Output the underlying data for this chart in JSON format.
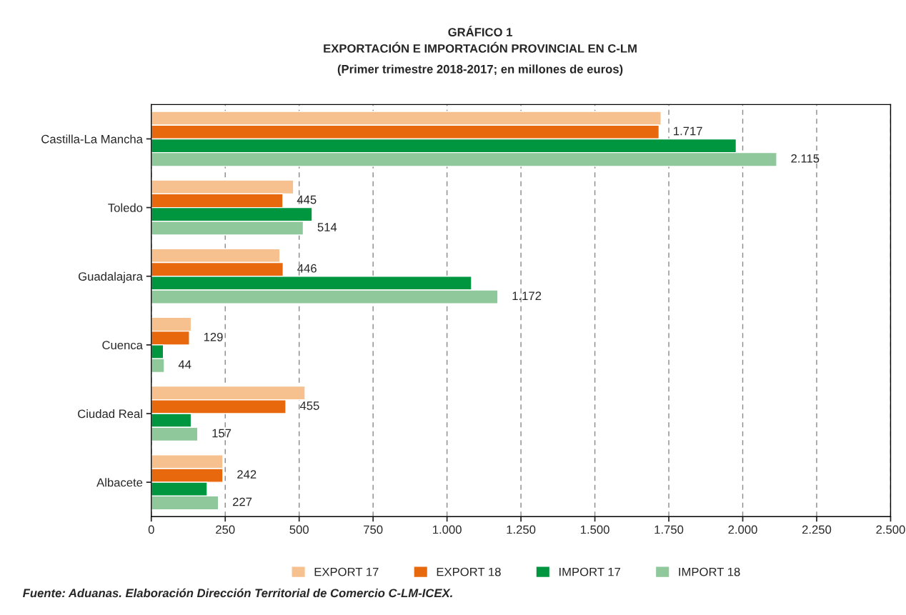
{
  "chart_data": {
    "type": "bar",
    "orientation": "horizontal",
    "title": "GRÁFICO 1\nEXPORTACIÓN E IMPORTACIÓN PROVINCIAL EN C-LM",
    "subtitle": "(Primer trimestre 2018-2017; en millones de euros)",
    "categories": [
      "Castilla-La Mancha",
      "Toledo",
      "Guadalajara",
      "Cuenca",
      "Ciudad Real",
      "Albacete"
    ],
    "series": [
      {
        "name": "EXPORT 17",
        "color": "#f7c08f",
        "values": [
          1724,
          481,
          435,
          135,
          520,
          242
        ]
      },
      {
        "name": "EXPORT 18",
        "color": "#e8690d",
        "values": [
          1717,
          445,
          446,
          129,
          455,
          242
        ],
        "value_labels": [
          "1.717",
          "445",
          "446",
          "129",
          "455",
          "242"
        ]
      },
      {
        "name": "IMPORT 17",
        "color": "#00963f",
        "values": [
          1978,
          544,
          1083,
          41,
          135,
          189
        ]
      },
      {
        "name": "IMPORT 18",
        "color": "#8fc89a",
        "values": [
          2115,
          514,
          1172,
          44,
          157,
          227
        ],
        "value_labels": [
          "2.115",
          "514",
          "1.172",
          "44",
          "157",
          "227"
        ]
      }
    ],
    "xlim": [
      0,
      2500
    ],
    "xticks": [
      0,
      250,
      500,
      750,
      {
        "value": 1000,
        "label": "1.000"
      },
      {
        "value": 1250,
        "label": "1.250"
      },
      {
        "value": 1500,
        "label": "1.500"
      },
      {
        "value": 1750,
        "label": "1.750"
      },
      {
        "value": 2000,
        "label": "2.000"
      },
      {
        "value": 2250,
        "label": "2.250"
      },
      {
        "value": 2500,
        "label": "2.500"
      }
    ],
    "grid": "x",
    "legend": "bottom",
    "annotations": [
      "Fuente: Aduanas. Elaboración Dirección Territorial de Comercio C-LM-ICEX."
    ]
  }
}
